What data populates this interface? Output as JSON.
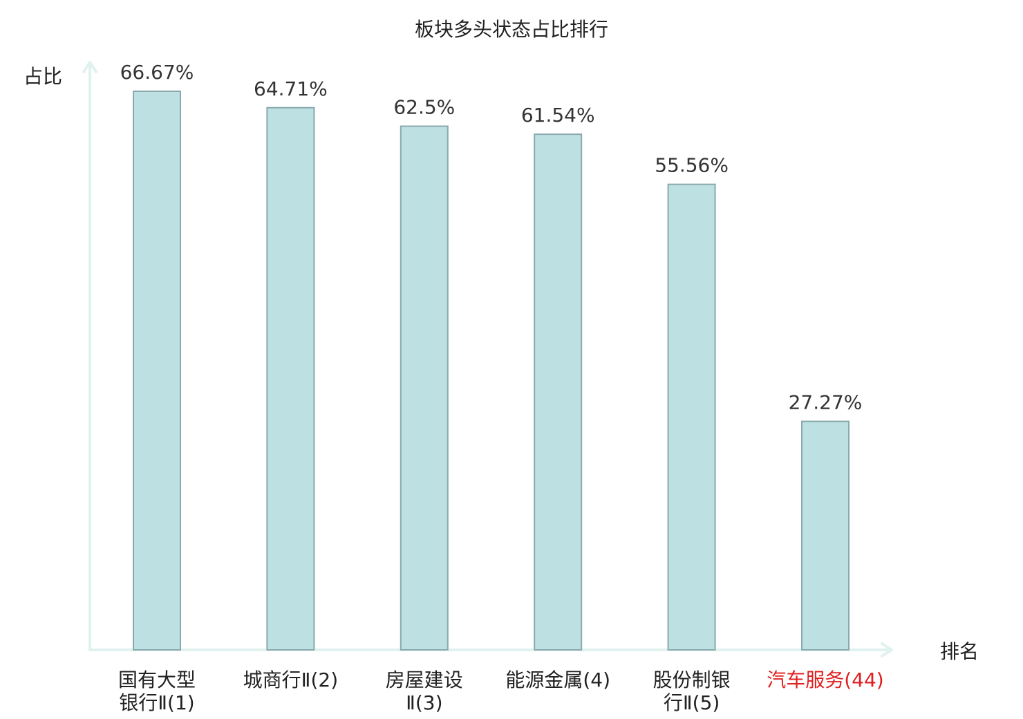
{
  "chart_data": {
    "type": "bar",
    "title": "板块多头状态占比排行",
    "ylabel": "占比",
    "xlabel": "排名",
    "ylim": [
      0,
      70
    ],
    "grid": false,
    "categories": [
      [
        "国有大型",
        "银行Ⅱ(1)"
      ],
      [
        "城商行Ⅱ(2)"
      ],
      [
        "房屋建设",
        "Ⅱ(3)"
      ],
      [
        "能源金属(4)"
      ],
      [
        "股份制银",
        "行Ⅱ(5)"
      ],
      [
        "汽车服务(44)"
      ]
    ],
    "values": [
      66.67,
      64.71,
      62.5,
      61.54,
      55.56,
      27.27
    ],
    "value_labels": [
      "66.67%",
      "64.71%",
      "62.5%",
      "61.54%",
      "55.56%",
      "27.27%"
    ],
    "highlight_index": 5
  },
  "colors": {
    "bar_fill": "#bde0e3",
    "bar_stroke": "#8aa9ad",
    "axis": "#e0f2ef",
    "highlight_text": "#e02020"
  }
}
